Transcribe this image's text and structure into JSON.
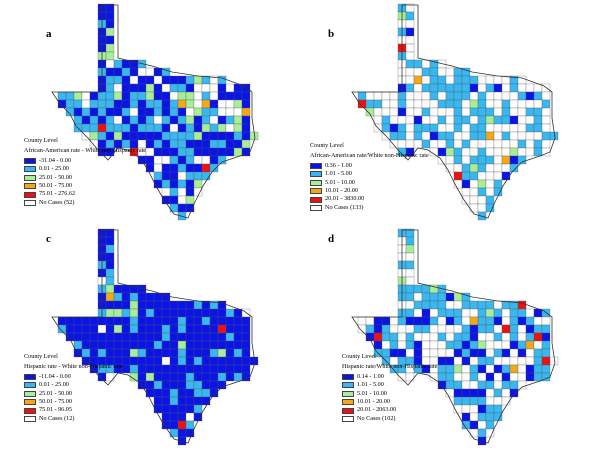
{
  "colors": {
    "dark_blue": "#0a14e6",
    "light_blue": "#39b7f0",
    "light_green": "#a8ee9a",
    "orange": "#f2a818",
    "red": "#ee1111",
    "white": "#ffffff",
    "border": "#333333"
  },
  "panels": [
    {
      "label": "a",
      "level": "County Level",
      "title": "African-American rate - White non-Hispanic rate",
      "legend": [
        {
          "text": "-31.04 - 0.00",
          "color": "#0a14e6"
        },
        {
          "text": "0.01 - 25.00",
          "color": "#39b7f0"
        },
        {
          "text": "25.01 - 50.00",
          "color": "#a8ee9a"
        },
        {
          "text": "50.01 - 75.00",
          "color": "#f2a818"
        },
        {
          "text": "75.01 - 276.62",
          "color": "#ee1111"
        },
        {
          "text": "No Cases (52)",
          "color": "#ffffff"
        }
      ]
    },
    {
      "label": "b",
      "level": "County Level",
      "title": "African-American rate/White non-Hispanic rate",
      "legend": [
        {
          "text": "0.36 - 1.00",
          "color": "#0a14e6"
        },
        {
          "text": "1.01 - 5.00",
          "color": "#39b7f0"
        },
        {
          "text": "5.01 - 10.00",
          "color": "#a8ee9a"
        },
        {
          "text": "10.01 - 20.00",
          "color": "#f2a818"
        },
        {
          "text": "20.01 - 3830.00",
          "color": "#ee1111"
        },
        {
          "text": "No Cases (133)",
          "color": "#ffffff"
        }
      ]
    },
    {
      "label": "c",
      "level": "County Level",
      "title": "Hispanic rate - White non-Hispanic rate",
      "legend": [
        {
          "text": "-11.04 - 0.00",
          "color": "#0a14e6"
        },
        {
          "text": "0.01 - 25.00",
          "color": "#39b7f0"
        },
        {
          "text": "25.01 - 50.00",
          "color": "#a8ee9a"
        },
        {
          "text": "50.01 - 75.00",
          "color": "#f2a818"
        },
        {
          "text": "75.01 - 96.05",
          "color": "#ee1111"
        },
        {
          "text": "No Cases (12)",
          "color": "#ffffff"
        }
      ]
    },
    {
      "label": "d",
      "level": "County Level",
      "title": "Hispanic rate/White non-Hispanic rate",
      "legend": [
        {
          "text": "0.14 - 1.00",
          "color": "#0a14e6"
        },
        {
          "text": "1.01 - 5.00",
          "color": "#39b7f0"
        },
        {
          "text": "5.01 - 10.00",
          "color": "#a8ee9a"
        },
        {
          "text": "10.01 - 20.00",
          "color": "#f2a818"
        },
        {
          "text": "20.01 - 2063.00",
          "color": "#ee1111"
        },
        {
          "text": "No Cases (102)",
          "color": "#ffffff"
        }
      ]
    }
  ]
}
